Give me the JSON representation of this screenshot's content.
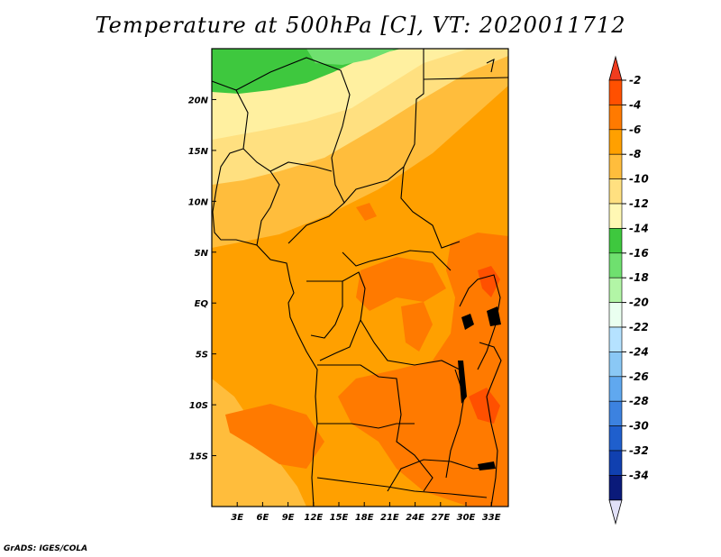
{
  "title": "Temperature at 500hPa [C], VT: 2020011712",
  "credit": "GrADS: IGES/COLA",
  "map": {
    "lon_range": [
      0,
      35
    ],
    "lat_range": [
      -20,
      25
    ],
    "lon_ticks": [
      "3E",
      "6E",
      "9E",
      "12E",
      "15E",
      "18E",
      "21E",
      "24E",
      "27E",
      "30E",
      "33E"
    ],
    "lat_ticks": [
      "20N",
      "15N",
      "10N",
      "5N",
      "EQ",
      "5S",
      "10S",
      "15S"
    ]
  },
  "colorbar": {
    "labels": [
      "-2",
      "-4",
      "-6",
      "-8",
      "-10",
      "-12",
      "-14",
      "-16",
      "-18",
      "-20",
      "-22",
      "-24",
      "-26",
      "-28",
      "-30",
      "-32",
      "-34"
    ],
    "colors": [
      "#ff5000",
      "#ff7a00",
      "#ffa000",
      "#ffbd3c",
      "#ffe080",
      "#fff8b4",
      "#3ec83e",
      "#6fe06f",
      "#b2f5a6",
      "#eafff0",
      "#b5e2ff",
      "#8ac8f5",
      "#60a8ef",
      "#3c82e0",
      "#1f5fcd",
      "#1040b0",
      "#0a1a7a"
    ],
    "top_color": "#f03c1e",
    "bottom_color": "#e1e0f7"
  },
  "fields": {
    "cold_band": "#3ec83e",
    "pale_band": "#fff0a0",
    "light_band": "#ffe080",
    "mid_band": "#ffbd3c",
    "warm_band": "#ffa000",
    "hot_band": "#ff7a00",
    "hottest_band": "#ff5000"
  }
}
